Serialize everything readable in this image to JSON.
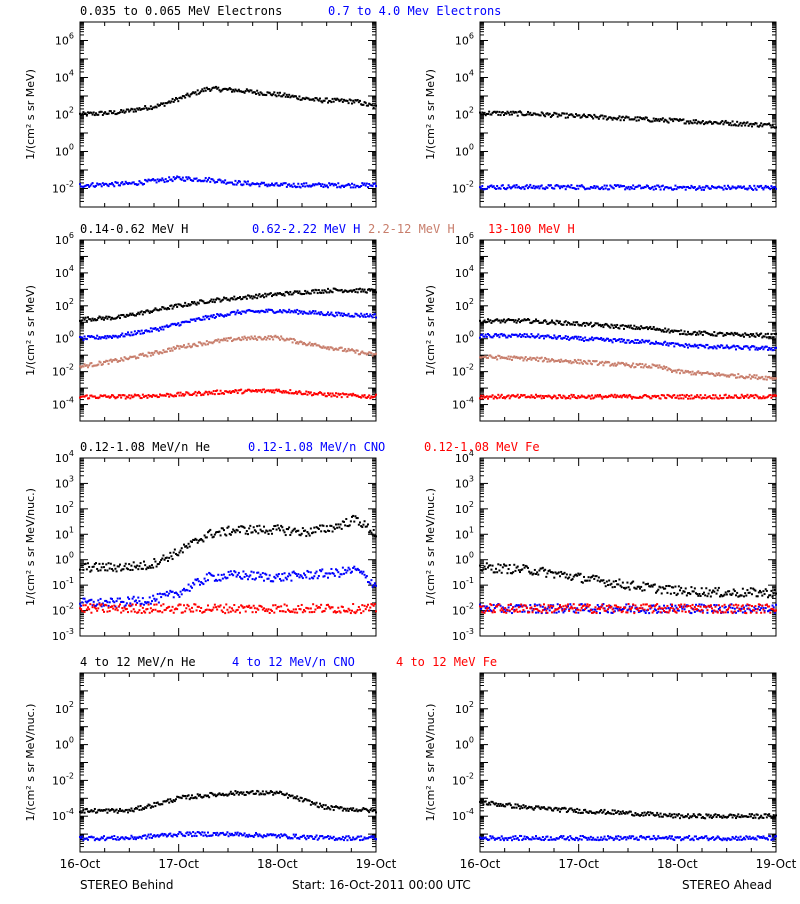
{
  "titles": {
    "row1": [
      {
        "text": "0.035 to 0.065 MeV Electrons",
        "color": "#000000"
      },
      {
        "text": "0.7 to 4.0 Mev Electrons",
        "color": "#0000ff"
      }
    ],
    "row2": [
      {
        "text": "0.14-0.62 MeV H",
        "color": "#000000"
      },
      {
        "text": "0.62-2.22 MeV H",
        "color": "#0000ff"
      },
      {
        "text": "2.2-12 MeV H",
        "color": "#c87e6c"
      },
      {
        "text": "13-100 MeV H",
        "color": "#ff0000"
      }
    ],
    "row3": [
      {
        "text": "0.12-1.08 MeV/n He",
        "color": "#000000"
      },
      {
        "text": "0.12-1.08 MeV/n CNO",
        "color": "#0000ff"
      },
      {
        "text": "0.12-1.08 MeV Fe",
        "color": "#ff0000"
      }
    ],
    "row4": [
      {
        "text": "4 to 12 MeV/n He",
        "color": "#000000"
      },
      {
        "text": "4 to 12 MeV/n CNO",
        "color": "#0000ff"
      },
      {
        "text": "4 to 12 MeV Fe",
        "color": "#ff0000"
      }
    ]
  },
  "footer": {
    "left": "STEREO Behind",
    "center": "Start: 16-Oct-2011 00:00 UTC",
    "right": "STEREO Ahead"
  },
  "colors": {
    "black": "#000000",
    "blue": "#0000ff",
    "salmon": "#c87e6c",
    "red": "#ff0000"
  },
  "chart_data": [
    {
      "id": "r1-behind",
      "type": "scatter",
      "scale": "log",
      "ylabel": "1/(cm² s sr MeV)",
      "ylim_exp": [
        -3,
        7
      ],
      "ytick_exp": [
        -2,
        0,
        2,
        4,
        6
      ],
      "xticks": [
        "16-Oct",
        "17-Oct",
        "18-Oct",
        "19-Oct"
      ],
      "xlim_days": [
        0,
        3
      ],
      "series": [
        {
          "color": "black",
          "x": [
            0,
            0.4,
            0.8,
            1.0,
            1.3,
            1.6,
            2.0,
            2.4,
            2.8,
            3.0
          ],
          "y": [
            100,
            130,
            300,
            700,
            2500,
            2000,
            1200,
            600,
            500,
            250
          ]
        },
        {
          "color": "blue",
          "x": [
            0,
            0.5,
            1.0,
            1.3,
            1.6,
            2.0,
            2.5,
            3.0
          ],
          "y": [
            0.015,
            0.018,
            0.035,
            0.03,
            0.02,
            0.015,
            0.015,
            0.015
          ]
        }
      ]
    },
    {
      "id": "r1-ahead",
      "type": "scatter",
      "scale": "log",
      "ylabel": "1/(cm² s sr MeV)",
      "ylim_exp": [
        -3,
        7
      ],
      "ytick_exp": [
        -2,
        0,
        2,
        4,
        6
      ],
      "xticks": [
        "16-Oct",
        "17-Oct",
        "18-Oct",
        "19-Oct"
      ],
      "xlim_days": [
        0,
        3
      ],
      "series": [
        {
          "color": "black",
          "x": [
            0,
            0.5,
            1.0,
            1.5,
            2.0,
            2.5,
            3.0
          ],
          "y": [
            120,
            110,
            80,
            60,
            45,
            35,
            25
          ]
        },
        {
          "color": "blue",
          "x": [
            0,
            1.0,
            2.0,
            3.0
          ],
          "y": [
            0.012,
            0.012,
            0.011,
            0.011
          ]
        }
      ]
    },
    {
      "id": "r2-behind",
      "type": "scatter",
      "scale": "log",
      "ylabel": "1/(cm² s sr MeV)",
      "ylim_exp": [
        -5,
        6
      ],
      "ytick_exp": [
        -4,
        -2,
        0,
        2,
        4,
        6
      ],
      "xticks": [
        "16-Oct",
        "17-Oct",
        "18-Oct",
        "19-Oct"
      ],
      "xlim_days": [
        0,
        3
      ],
      "series": [
        {
          "color": "black",
          "x": [
            0,
            0.4,
            0.8,
            1.0,
            1.3,
            1.6,
            2.0,
            2.3,
            2.6,
            3.0
          ],
          "y": [
            15,
            20,
            60,
            100,
            200,
            300,
            500,
            700,
            900,
            800
          ]
        },
        {
          "color": "blue",
          "x": [
            0,
            0.4,
            0.8,
            1.0,
            1.3,
            1.6,
            2.0,
            2.3,
            2.6,
            3.0
          ],
          "y": [
            1.0,
            1.5,
            4,
            8,
            20,
            40,
            50,
            40,
            30,
            25
          ]
        },
        {
          "color": "salmon",
          "x": [
            0,
            0.4,
            0.8,
            1.0,
            1.3,
            1.6,
            2.0,
            2.3,
            2.6,
            3.0
          ],
          "y": [
            0.02,
            0.05,
            0.15,
            0.3,
            0.6,
            1.0,
            1.2,
            0.5,
            0.25,
            0.1
          ]
        },
        {
          "color": "red",
          "x": [
            0,
            0.5,
            1.0,
            1.5,
            2.0,
            2.5,
            3.0
          ],
          "y": [
            0.0003,
            0.0003,
            0.0004,
            0.0006,
            0.0007,
            0.0004,
            0.0003
          ]
        }
      ]
    },
    {
      "id": "r2-ahead",
      "type": "scatter",
      "scale": "log",
      "ylabel": "1/(cm² s sr MeV)",
      "ylim_exp": [
        -5,
        6
      ],
      "ytick_exp": [
        -4,
        -2,
        0,
        2,
        4,
        6
      ],
      "xticks": [
        "16-Oct",
        "17-Oct",
        "18-Oct",
        "19-Oct"
      ],
      "xlim_days": [
        0,
        3
      ],
      "series": [
        {
          "color": "black",
          "x": [
            0,
            0.5,
            1.0,
            1.5,
            1.8,
            2.0,
            2.5,
            3.0
          ],
          "y": [
            12,
            12,
            8,
            5,
            4,
            2.5,
            1.8,
            1.5
          ]
        },
        {
          "color": "blue",
          "x": [
            0,
            0.5,
            1.0,
            1.5,
            1.8,
            2.0,
            2.5,
            3.0
          ],
          "y": [
            1.5,
            1.5,
            1.0,
            0.7,
            0.6,
            0.4,
            0.3,
            0.25
          ]
        },
        {
          "color": "salmon",
          "x": [
            0,
            0.5,
            1.0,
            1.5,
            1.8,
            2.0,
            2.5,
            3.0
          ],
          "y": [
            0.08,
            0.06,
            0.04,
            0.025,
            0.02,
            0.01,
            0.006,
            0.004
          ]
        },
        {
          "color": "red",
          "x": [
            0,
            1.0,
            2.0,
            3.0
          ],
          "y": [
            0.0003,
            0.0003,
            0.0003,
            0.0003
          ]
        }
      ]
    },
    {
      "id": "r3-behind",
      "type": "scatter",
      "scale": "log",
      "ylabel": "1/(cm² s sr MeV/nuc.)",
      "ylim_exp": [
        -3,
        4
      ],
      "ytick_exp": [
        -3,
        -2,
        -1,
        0,
        1,
        2,
        3,
        4
      ],
      "xticks": [
        "16-Oct",
        "17-Oct",
        "18-Oct",
        "19-Oct"
      ],
      "xlim_days": [
        0,
        3
      ],
      "series": [
        {
          "color": "black",
          "x": [
            0,
            0.4,
            0.7,
            1.0,
            1.3,
            1.6,
            2.0,
            2.3,
            2.6,
            2.8,
            3.0
          ],
          "y": [
            0.5,
            0.5,
            0.6,
            2,
            10,
            15,
            15,
            12,
            20,
            40,
            10
          ]
        },
        {
          "color": "blue",
          "x": [
            0,
            0.4,
            0.8,
            1.0,
            1.3,
            1.6,
            2.0,
            2.3,
            2.6,
            2.8,
            3.0
          ],
          "y": [
            0.02,
            0.02,
            0.03,
            0.05,
            0.2,
            0.25,
            0.2,
            0.25,
            0.3,
            0.4,
            0.1
          ]
        },
        {
          "color": "red",
          "x": [
            0,
            1.0,
            2.0,
            3.0
          ],
          "y": [
            0.012,
            0.012,
            0.012,
            0.012
          ]
        }
      ]
    },
    {
      "id": "r3-ahead",
      "type": "scatter",
      "scale": "log",
      "ylabel": "1/(cm² s sr MeV/nuc.)",
      "ylim_exp": [
        -3,
        4
      ],
      "ytick_exp": [
        -3,
        -2,
        -1,
        0,
        1,
        2,
        3,
        4
      ],
      "xticks": [
        "16-Oct",
        "17-Oct",
        "18-Oct",
        "19-Oct"
      ],
      "xlim_days": [
        0,
        3
      ],
      "series": [
        {
          "color": "black",
          "x": [
            0,
            0.5,
            1.0,
            1.5,
            2.0,
            2.5,
            3.0
          ],
          "y": [
            0.5,
            0.4,
            0.2,
            0.1,
            0.06,
            0.05,
            0.05
          ]
        },
        {
          "color": "blue",
          "x": [
            0,
            1.0,
            2.0,
            3.0
          ],
          "y": [
            0.012,
            0.012,
            0.012,
            0.012
          ]
        },
        {
          "color": "red",
          "x": [
            0,
            1.0,
            2.0,
            3.0
          ],
          "y": [
            0.012,
            0.012,
            0.012,
            0.012
          ]
        }
      ]
    },
    {
      "id": "r4-behind",
      "type": "scatter",
      "scale": "log",
      "ylabel": "1/(cm² s sr MeV/nuc.)",
      "ylim_exp": [
        -6,
        4
      ],
      "ytick_exp": [
        -4,
        -2,
        0,
        2
      ],
      "xticks": [
        "16-Oct",
        "17-Oct",
        "18-Oct",
        "19-Oct"
      ],
      "xlim_days": [
        0,
        3
      ],
      "series": [
        {
          "color": "black",
          "x": [
            0,
            0.5,
            0.8,
            1.0,
            1.3,
            1.6,
            2.0,
            2.2,
            2.5,
            3.0
          ],
          "y": [
            0.0002,
            0.0002,
            0.0005,
            0.001,
            0.0015,
            0.002,
            0.002,
            0.001,
            0.0003,
            0.0002
          ]
        },
        {
          "color": "blue",
          "x": [
            0,
            0.5,
            1.0,
            1.5,
            2.0,
            2.5,
            3.0
          ],
          "y": [
            6e-06,
            6e-06,
            1e-05,
            1e-05,
            8e-06,
            6e-06,
            6e-06
          ]
        },
        {
          "color": "red",
          "x": [],
          "y": []
        }
      ]
    },
    {
      "id": "r4-ahead",
      "type": "scatter",
      "scale": "log",
      "ylabel": "1/(cm² s sr MeV/nuc.)",
      "ylim_exp": [
        -6,
        4
      ],
      "ytick_exp": [
        -4,
        -2,
        0,
        2
      ],
      "xticks": [
        "16-Oct",
        "17-Oct",
        "18-Oct",
        "19-Oct"
      ],
      "xlim_days": [
        0,
        3
      ],
      "series": [
        {
          "color": "black",
          "x": [
            0,
            0.5,
            1.0,
            1.5,
            2.0,
            3.0
          ],
          "y": [
            0.0006,
            0.0003,
            0.0002,
            0.00015,
            0.0001,
            0.0001
          ]
        },
        {
          "color": "blue",
          "x": [
            0,
            1.0,
            3.0
          ],
          "y": [
            6e-06,
            6e-06,
            6e-06
          ]
        },
        {
          "color": "red",
          "x": [],
          "y": []
        }
      ]
    }
  ]
}
